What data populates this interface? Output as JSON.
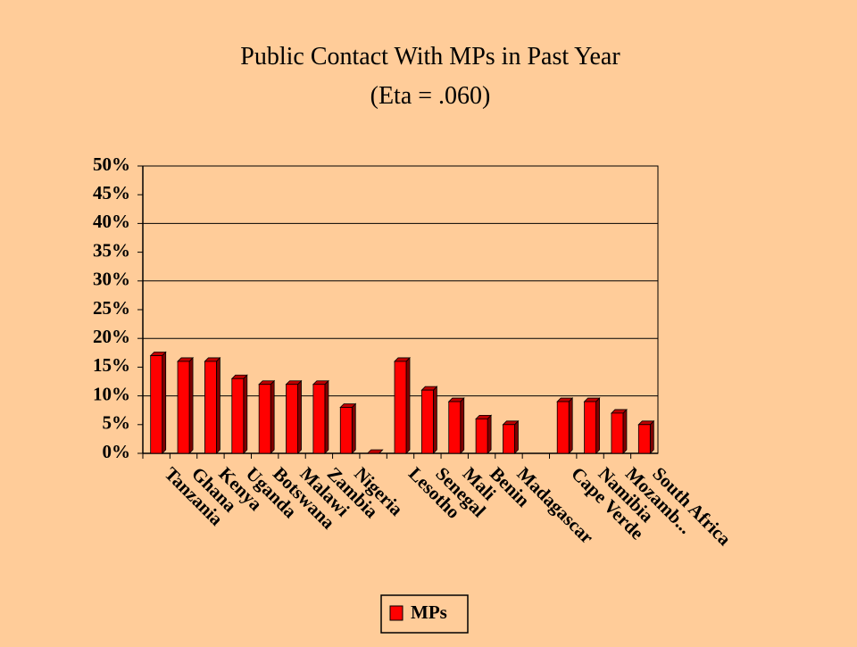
{
  "chart_data": {
    "type": "bar",
    "title": "Public Contact With MPs in Past Year",
    "subtitle": "(Eta = .060)",
    "categories": [
      "Tanzania",
      "Ghana",
      "Kenya",
      "Uganda",
      "Botswana",
      "Malawi",
      "Zambia",
      "Nigeria",
      null,
      "Lesotho",
      "Senegal",
      "Mali",
      "Benin",
      "Madagascar",
      null,
      "Cape Verde",
      "Namibia",
      "Mozamb...",
      "South Africa"
    ],
    "series": [
      {
        "name": "MPs",
        "color": "#ff0000",
        "values": [
          17,
          16,
          16,
          13,
          12,
          12,
          12,
          8,
          0,
          16,
          11,
          9,
          6,
          5,
          null,
          9,
          9,
          7,
          5
        ]
      }
    ],
    "ylim": [
      0,
      50
    ],
    "yticks": [
      {
        "value": 0,
        "label": "0%"
      },
      {
        "value": 5,
        "label": "5%"
      },
      {
        "value": 10,
        "label": "10%"
      },
      {
        "value": 15,
        "label": "15%"
      },
      {
        "value": 20,
        "label": "20%"
      },
      {
        "value": 25,
        "label": "25%"
      },
      {
        "value": 30,
        "label": "30%"
      },
      {
        "value": 35,
        "label": "35%"
      },
      {
        "value": 40,
        "label": "40%"
      },
      {
        "value": 45,
        "label": "45%"
      },
      {
        "value": 50,
        "label": "50%"
      }
    ],
    "grid": true,
    "legend": "bottom"
  }
}
